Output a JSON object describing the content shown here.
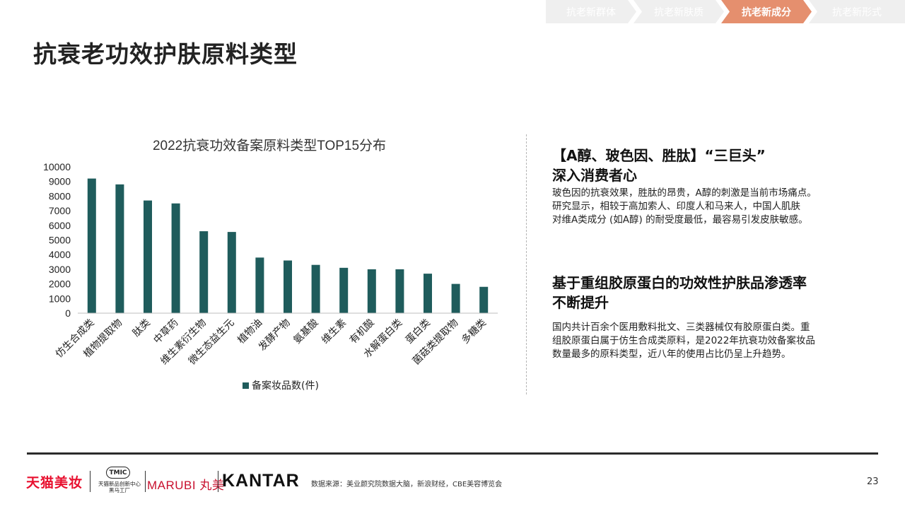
{
  "nav": {
    "tabs": [
      {
        "label": "抗老新群体",
        "active": false
      },
      {
        "label": "抗老新肤质",
        "active": false
      },
      {
        "label": "抗老新成分",
        "active": true
      },
      {
        "label": "抗老新形式",
        "active": false
      }
    ],
    "active_color": "#e58f6e",
    "inactive_color": "#efefef"
  },
  "page_title": "抗衰老功效护肤原料类型",
  "chart_data": {
    "type": "bar",
    "title": "2022抗衰功效备案原料类型TOP15分布",
    "categories": [
      "仿生合成类",
      "植物提取物",
      "肽类",
      "中草药",
      "维生素衍生物",
      "微生态益生元",
      "植物油",
      "发酵产物",
      "氨基酸",
      "维生素",
      "有机酸",
      "水解蛋白类",
      "蛋白类",
      "菌菇类提取物",
      "多糖类"
    ],
    "series": [
      {
        "name": "备案妆品数(件)",
        "values": [
          9200,
          8800,
          7700,
          7500,
          5600,
          5550,
          3800,
          3600,
          3300,
          3100,
          3000,
          3000,
          2700,
          2000,
          1800
        ]
      }
    ],
    "ylim": [
      0,
      10000
    ],
    "yticks": [
      0,
      1000,
      2000,
      3000,
      4000,
      5000,
      6000,
      7000,
      8000,
      9000,
      10000
    ],
    "grid": false,
    "legend": "bottom",
    "color": "#1f5c5c"
  },
  "right": {
    "block1": {
      "heading_line1": "【A醇、玻色因、胜肽】“三巨头”",
      "heading_line2": "深入消费者心",
      "p_line1": "玻色因的抗衰效果，胜肽的昂贵，A醇的刺激是当前市场痛点。",
      "p_line2": "研究显示，相较于高加索人、印度人和马来人，中国人肌肤",
      "p_line3": "对维A类成分 (如A醇) 的耐受度最低，最容易引发皮肤敏感。"
    },
    "block2": {
      "heading_line1": "基于重组胶原蛋白的功效性护肤品渗透率",
      "heading_line2": "不断提升",
      "p_line1": "国内共计百余个医用敷料批文、三类器械仅有胶原蛋白类。重",
      "p_line2": "组胶原蛋白属于仿生合成类原料，是2022年抗衰功效备案妆品",
      "p_line3": "数量最多的原料类型，近八年的使用占比仍呈上升趋势。"
    }
  },
  "footer": {
    "logo_tmall": "天猫美妆",
    "logo_tmic_badge": "TMIC",
    "logo_tmic_sub1": "天猫新品创新中心",
    "logo_tmic_sub2": "黑马工厂",
    "logo_marubi": "MARUBI 丸美",
    "logo_kantar": "KANTAR",
    "source": "数据来源：美业颜究院数据大脑，新浪财经，CBE美容博览会",
    "page_number": "23"
  }
}
